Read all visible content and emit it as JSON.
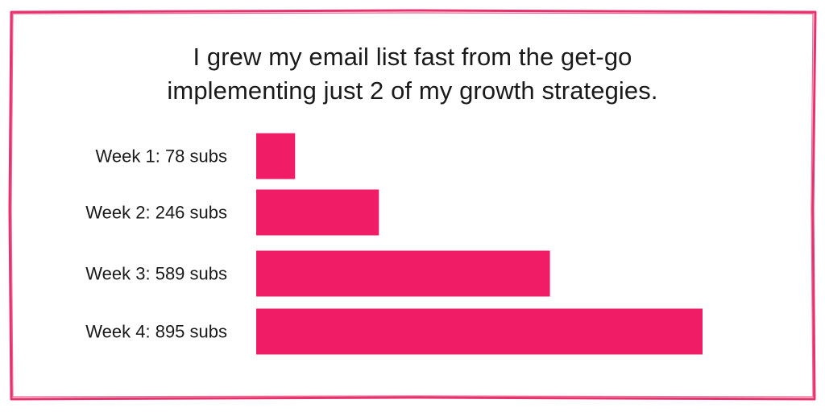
{
  "colors": {
    "bar": "#f01d66",
    "border": "#e7336d",
    "text": "#1a1a1a"
  },
  "title_lines": [
    "I grew my email list fast from the get-go",
    "implementing just 2 of my growth strategies."
  ],
  "chart_data": {
    "type": "bar",
    "orientation": "horizontal",
    "categories": [
      "Week 1",
      "Week 2",
      "Week 3",
      "Week 4"
    ],
    "labels": [
      "Week 1: 78 subs",
      "Week 2: 246 subs",
      "Week 3: 589 subs",
      "Week 4: 895 subs"
    ],
    "values": [
      78,
      246,
      589,
      895
    ],
    "unit": "subs",
    "grid": false,
    "axes_visible": false,
    "legend": "none"
  }
}
